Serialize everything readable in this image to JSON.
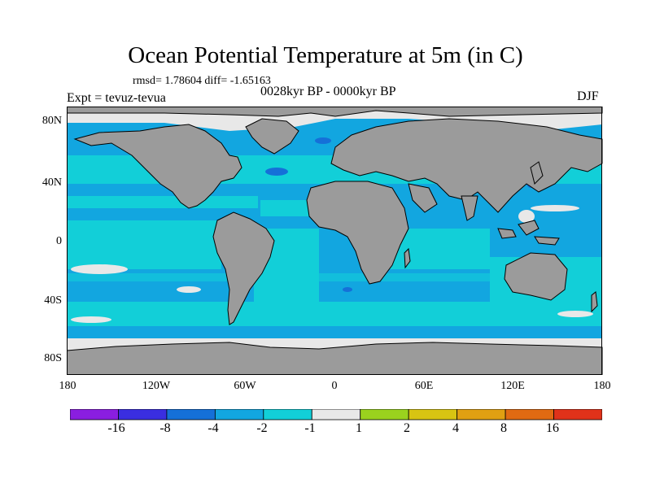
{
  "title": "Ocean Potential Temperature at 5m (in C)",
  "stats": "rmsd= 1.78604  diff= -1.65163",
  "experiment": "Expt = tevuz-tevua",
  "period": "0028kyr BP - 0000kyr BP",
  "season": "DJF",
  "lat_ticks": [
    "80N",
    "40N",
    "0",
    "40S",
    "80S"
  ],
  "lon_ticks": [
    "180",
    "120W",
    "60W",
    "0",
    "60E",
    "120E",
    "180"
  ],
  "colorbar": {
    "labels": [
      "-16",
      "-8",
      "-4",
      "-2",
      "-1",
      "1",
      "2",
      "4",
      "8",
      "16"
    ],
    "colors": [
      "#8a1ee0",
      "#3a2ee0",
      "#1570d8",
      "#12a6e0",
      "#12cfd8",
      "#e8e8e8",
      "#9ad21e",
      "#d8c412",
      "#e0a012",
      "#e06a12",
      "#e0321a"
    ]
  },
  "map_colors": {
    "land": "#9b9b9b",
    "ocean_base": "#12a6e0",
    "ocean_light": "#12cfd8",
    "cold": "#1570d8",
    "near_zero": "#e8e8e8",
    "warm": "#9ad21e"
  }
}
